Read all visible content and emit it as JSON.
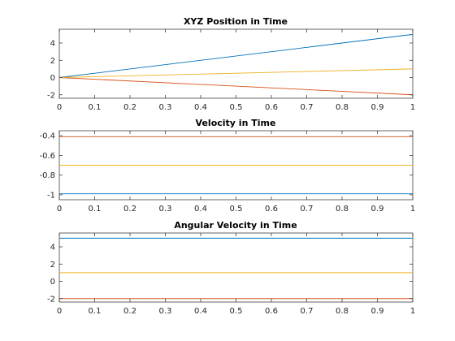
{
  "chart_data": [
    {
      "type": "line",
      "title": "XYZ Position in Time",
      "xlabel": "",
      "ylabel": "",
      "xlim": [
        0,
        1
      ],
      "ylim": [
        -2.4,
        5.6
      ],
      "xticks": [
        0,
        0.1,
        0.2,
        0.3,
        0.4,
        0.5,
        0.6,
        0.7,
        0.8,
        0.9,
        1
      ],
      "xtick_labels": [
        "0",
        "0.1",
        "0.2",
        "0.3",
        "0.4",
        "0.5",
        "0.6",
        "0.7",
        "0.8",
        "0.9",
        "1"
      ],
      "yticks": [
        -2,
        0,
        2,
        4
      ],
      "ytick_labels": [
        "-2",
        "0",
        "2",
        "4"
      ],
      "grid": false,
      "x": [
        0,
        1
      ],
      "series": [
        {
          "color": "#0072BD",
          "values": [
            0,
            5
          ]
        },
        {
          "color": "#D95319",
          "values": [
            0,
            -2
          ]
        },
        {
          "color": "#EDB120",
          "values": [
            0,
            1
          ]
        }
      ]
    },
    {
      "type": "line",
      "title": "Velocity in Time",
      "xlabel": "",
      "ylabel": "",
      "xlim": [
        0,
        1
      ],
      "ylim": [
        -1.05,
        -0.35
      ],
      "xticks": [
        0,
        0.1,
        0.2,
        0.3,
        0.4,
        0.5,
        0.6,
        0.7,
        0.8,
        0.9,
        1
      ],
      "xtick_labels": [
        "0",
        "0.1",
        "0.2",
        "0.3",
        "0.4",
        "0.5",
        "0.6",
        "0.7",
        "0.8",
        "0.9",
        "1"
      ],
      "yticks": [
        -1,
        -0.8,
        -0.6,
        -0.4
      ],
      "ytick_labels": [
        "-1",
        "-0.8",
        "-0.6",
        "-0.4"
      ],
      "grid": false,
      "x": [
        0,
        1
      ],
      "series": [
        {
          "color": "#0072BD",
          "values": [
            -0.99,
            -0.99
          ]
        },
        {
          "color": "#D95319",
          "values": [
            -0.41,
            -0.41
          ]
        },
        {
          "color": "#EDB120",
          "values": [
            -0.7,
            -0.7
          ]
        }
      ]
    },
    {
      "type": "line",
      "title": "Angular Velocity in Time",
      "xlabel": "",
      "ylabel": "",
      "xlim": [
        0,
        1
      ],
      "ylim": [
        -2.4,
        5.6
      ],
      "xticks": [
        0,
        0.1,
        0.2,
        0.3,
        0.4,
        0.5,
        0.6,
        0.7,
        0.8,
        0.9,
        1
      ],
      "xtick_labels": [
        "0",
        "0.1",
        "0.2",
        "0.3",
        "0.4",
        "0.5",
        "0.6",
        "0.7",
        "0.8",
        "0.9",
        "1"
      ],
      "yticks": [
        -2,
        0,
        2,
        4
      ],
      "ytick_labels": [
        "-2",
        "0",
        "2",
        "4"
      ],
      "grid": false,
      "x": [
        0,
        1
      ],
      "series": [
        {
          "color": "#0072BD",
          "values": [
            5,
            5
          ]
        },
        {
          "color": "#D95319",
          "values": [
            -2,
            -2
          ]
        },
        {
          "color": "#EDB120",
          "values": [
            1,
            1
          ]
        }
      ]
    }
  ]
}
